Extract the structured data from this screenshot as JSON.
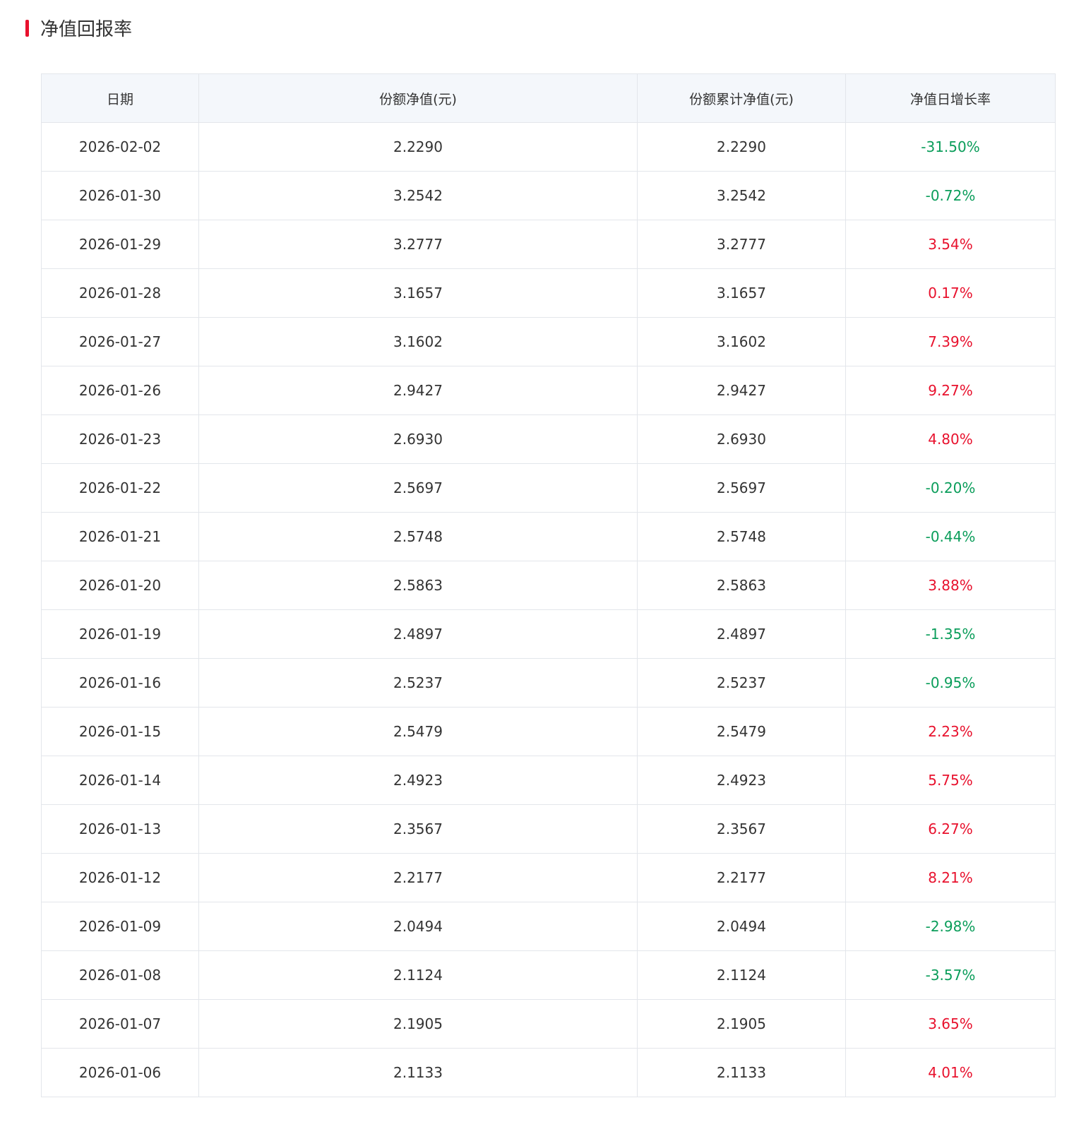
{
  "header": {
    "title": "净值回报率"
  },
  "table": {
    "columns": [
      "日期",
      "份额净值(元)",
      "份额累计净值(元)",
      "净值日增长率"
    ],
    "rows": [
      [
        "2026-02-02",
        "2.2290",
        "2.2290",
        "-31.50%"
      ],
      [
        "2026-01-30",
        "3.2542",
        "3.2542",
        "-0.72%"
      ],
      [
        "2026-01-29",
        "3.2777",
        "3.2777",
        "3.54%"
      ],
      [
        "2026-01-28",
        "3.1657",
        "3.1657",
        "0.17%"
      ],
      [
        "2026-01-27",
        "3.1602",
        "3.1602",
        "7.39%"
      ],
      [
        "2026-01-26",
        "2.9427",
        "2.9427",
        "9.27%"
      ],
      [
        "2026-01-23",
        "2.6930",
        "2.6930",
        "4.80%"
      ],
      [
        "2026-01-22",
        "2.5697",
        "2.5697",
        "-0.20%"
      ],
      [
        "2026-01-21",
        "2.5748",
        "2.5748",
        "-0.44%"
      ],
      [
        "2026-01-20",
        "2.5863",
        "2.5863",
        "3.88%"
      ],
      [
        "2026-01-19",
        "2.4897",
        "2.4897",
        "-1.35%"
      ],
      [
        "2026-01-16",
        "2.5237",
        "2.5237",
        "-0.95%"
      ],
      [
        "2026-01-15",
        "2.5479",
        "2.5479",
        "2.23%"
      ],
      [
        "2026-01-14",
        "2.4923",
        "2.4923",
        "5.75%"
      ],
      [
        "2026-01-13",
        "2.3567",
        "2.3567",
        "6.27%"
      ],
      [
        "2026-01-12",
        "2.2177",
        "2.2177",
        "8.21%"
      ],
      [
        "2026-01-09",
        "2.0494",
        "2.0494",
        "-2.98%"
      ],
      [
        "2026-01-08",
        "2.1124",
        "2.1124",
        "-3.57%"
      ],
      [
        "2026-01-07",
        "2.1905",
        "2.1905",
        "3.65%"
      ],
      [
        "2026-01-06",
        "2.1133",
        "2.1133",
        "4.01%"
      ]
    ]
  }
}
